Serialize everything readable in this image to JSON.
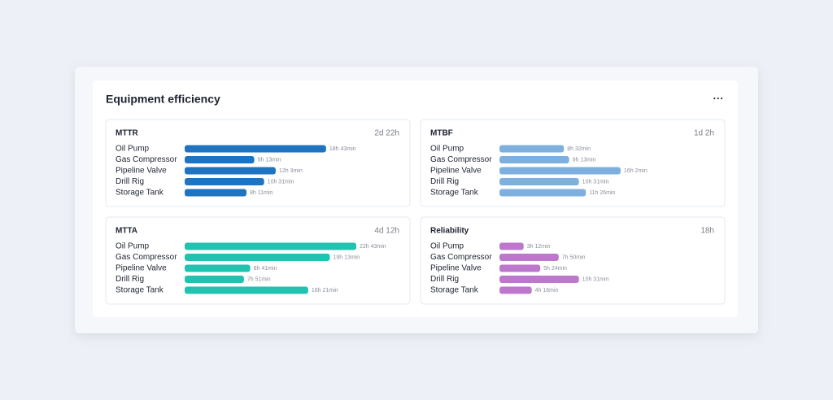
{
  "header": {
    "title": "Equipment efficiency",
    "menu": "···"
  },
  "chart_data": [
    {
      "type": "bar",
      "title": "MTTR",
      "summary": "2d 22h",
      "color": "#1f74c2",
      "categories": [
        "Oil Pump",
        "Gas Compressor",
        "Pipeline Valve",
        "Drill Rig",
        "Storage Tank"
      ],
      "values": [
        1123,
        553,
        723,
        631,
        491
      ],
      "value_labels": [
        "18h 43min",
        "9h 13min",
        "12h 3min",
        "10h 31min",
        "8h 11min"
      ]
    },
    {
      "type": "bar",
      "title": "MTBF",
      "summary": "1d 2h",
      "color": "#7db0de",
      "categories": [
        "Oil Pump",
        "Gas Compressor",
        "Pipeline Valve",
        "Drill Rig",
        "Storage Tank"
      ],
      "values": [
        512,
        553,
        962,
        631,
        686
      ],
      "value_labels": [
        "8h 32min",
        "9h 13min",
        "16h 2min",
        "10h 31min",
        "11h 26min"
      ]
    },
    {
      "type": "bar",
      "title": "MTTA",
      "summary": "4d 12h",
      "color": "#21c2b0",
      "categories": [
        "Oil Pump",
        "Gas Compressor",
        "Pipeline Valve",
        "Drill Rig",
        "Storage Tank"
      ],
      "values": [
        1363,
        1153,
        521,
        471,
        981
      ],
      "value_labels": [
        "22h 43min",
        "19h 13min",
        "8h 41min",
        "7h 51min",
        "16h 21min"
      ]
    },
    {
      "type": "bar",
      "title": "Reliability",
      "summary": "18h",
      "color": "#bd77cc",
      "categories": [
        "Oil Pump",
        "Gas Compressor",
        "Pipeline Valve",
        "Drill Rig",
        "Storage Tank"
      ],
      "values": [
        192,
        470,
        324,
        631,
        256
      ],
      "value_labels": [
        "3h 12min",
        "7h 50min",
        "5h 24min",
        "10h 31min",
        "4h 16min"
      ]
    }
  ]
}
